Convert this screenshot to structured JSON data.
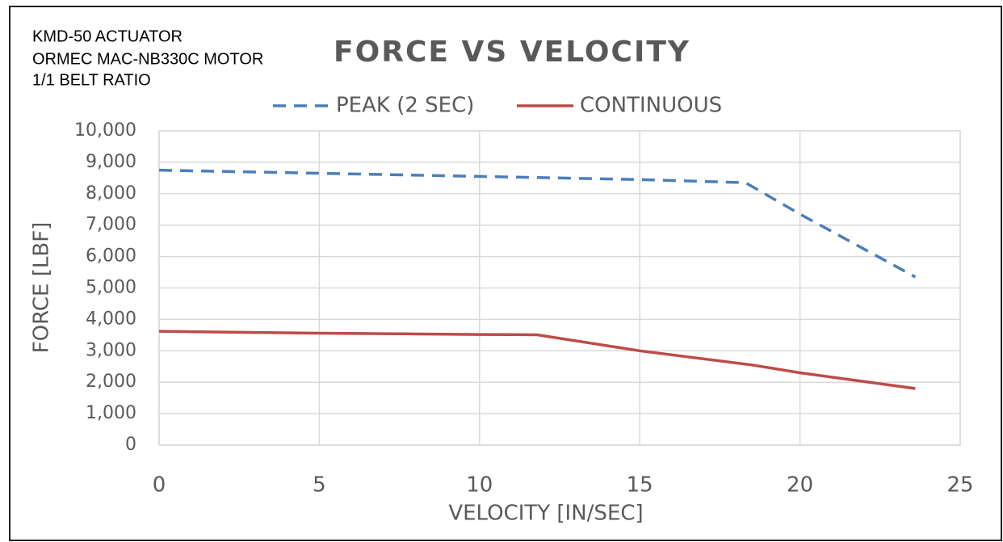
{
  "chart_data": {
    "type": "line",
    "title": "FORCE VS VELOCITY",
    "annotations": [
      "KMD-50 ACTUATOR",
      "ORMEC MAC-NB330C MOTOR",
      "1/1 BELT RATIO"
    ],
    "xlabel": "VELOCITY [IN/SEC]",
    "ylabel": "FORCE [LBF]",
    "xlim": [
      0,
      25
    ],
    "xticks": [
      0,
      5,
      10,
      15,
      20,
      25
    ],
    "ylim": [
      0,
      10000
    ],
    "yticks": [
      0,
      {
        "value": 1000,
        "label": "1,000"
      },
      {
        "value": 2000,
        "label": "2,000"
      },
      {
        "value": 3000,
        "label": "3,000"
      },
      {
        "value": 4000,
        "label": "4,000"
      },
      {
        "value": 5000,
        "label": "5,000"
      },
      {
        "value": 6000,
        "label": "6,000"
      },
      {
        "value": 7000,
        "label": "7,000"
      },
      {
        "value": 8000,
        "label": "8,000"
      },
      {
        "value": 9000,
        "label": "9,000"
      },
      {
        "value": 10000,
        "label": "10,000"
      }
    ],
    "grid": true,
    "legend": "top",
    "series": [
      {
        "name": "PEAK (2 SEC)",
        "color": "#4a7ebb",
        "dash": true,
        "x": [
          0,
          5,
          10,
          15,
          18.3,
          20,
          23.6
        ],
        "values": [
          8750,
          8650,
          8550,
          8450,
          8350,
          7350,
          5350
        ]
      },
      {
        "name": "CONTINUOUS",
        "color": "#be4b48",
        "dash": false,
        "x": [
          0,
          5,
          10,
          11.8,
          15,
          18.5,
          20,
          23.6
        ],
        "values": [
          3620,
          3560,
          3520,
          3510,
          3000,
          2550,
          2300,
          1800
        ]
      }
    ]
  }
}
